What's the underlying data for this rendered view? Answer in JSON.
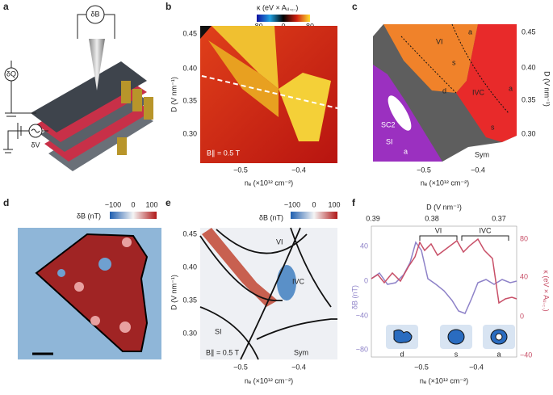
{
  "panels": {
    "a": {
      "letter": "a",
      "circuit_labels": [
        "δB",
        "δQ",
        "δV"
      ]
    },
    "b": {
      "letter": "b",
      "colorbar_title": "κ (eV × Aᵤ.꜀.)",
      "colorbar_ticks": [
        "−80",
        "0",
        "80"
      ],
      "y_ticks": [
        "0.45",
        "0.40",
        "0.35",
        "0.30"
      ],
      "x_ticks": [
        "−0.5",
        "−0.4"
      ],
      "x_label": "nₑ (×10¹² cm⁻²)",
      "y_label": "D (V nm⁻¹)",
      "annotation": "B∥ = 0.5 T"
    },
    "c": {
      "letter": "c",
      "y_ticks": [
        "0.45",
        "0.40",
        "0.35",
        "0.30"
      ],
      "x_ticks": [
        "−0.5",
        "−0.4"
      ],
      "x_label": "nₑ (×10¹² cm⁻²)",
      "y_label": "D (V nm⁻¹)",
      "regions": [
        "VI",
        "a",
        "s",
        "d",
        "IVC",
        "a",
        "s",
        "SC2",
        "SI",
        "a",
        "Sym"
      ]
    },
    "d": {
      "letter": "d",
      "colorbar_title": "δB (nT)",
      "colorbar_ticks": [
        "−100",
        "0",
        "100"
      ]
    },
    "e": {
      "letter": "e",
      "colorbar_title": "δB (nT)",
      "colorbar_ticks": [
        "−100",
        "0",
        "100"
      ],
      "y_ticks": [
        "0.45",
        "0.40",
        "0.35",
        "0.30"
      ],
      "x_ticks": [
        "−0.5",
        "−0.4"
      ],
      "x_label": "nₑ (×10¹² cm⁻²)",
      "y_label": "D (V nm⁻¹)",
      "regions": [
        "VI",
        "IVC",
        "SI",
        "Sym"
      ],
      "annotation": "B∥ = 0.5 T"
    },
    "f": {
      "letter": "f",
      "top_label": "D (V nm⁻¹)",
      "top_ticks": [
        "0.39",
        "0.38",
        "0.37"
      ],
      "left_ticks": [
        "40",
        "0",
        "−40",
        "−80"
      ],
      "right_ticks": [
        "80",
        "40",
        "0",
        "−40"
      ],
      "left_label": "δB (nT)",
      "right_label": "κ (eV × Aᵤ.꜀.)",
      "x_ticks": [
        "−0.5",
        "−0.4"
      ],
      "x_label": "nₑ (×10¹² cm⁻²)",
      "phases": [
        "VI",
        "IVC"
      ],
      "insets": [
        "d",
        "s",
        "a"
      ]
    }
  }
}
